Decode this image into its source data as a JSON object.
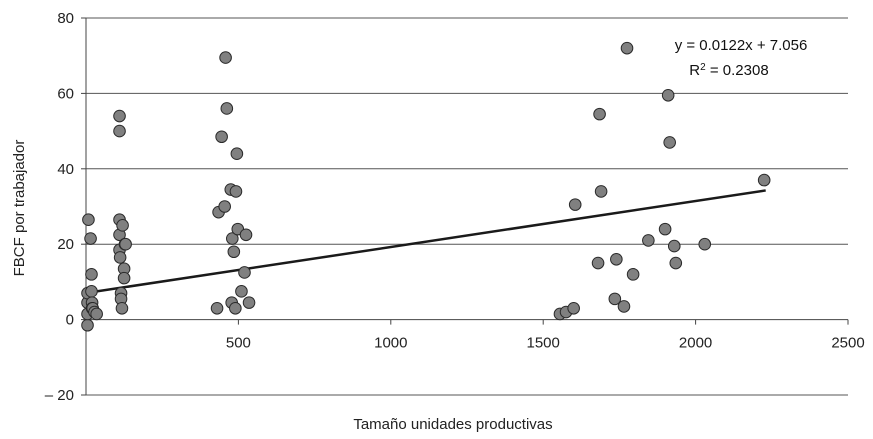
{
  "chart_data": {
    "type": "scatter",
    "xlabel": "Tamaño unidades productivas",
    "ylabel": "FBCF por trabajador",
    "xlim": [
      0,
      2500
    ],
    "ylim": [
      -20,
      80
    ],
    "xticks": [
      500,
      1000,
      1500,
      2000,
      2500
    ],
    "xtick_labels": [
      "500",
      "1000",
      "1500",
      "2000",
      "2500"
    ],
    "yticks": [
      -20,
      0,
      20,
      40,
      60,
      80
    ],
    "ytick_labels": [
      "– 20",
      "0",
      "20",
      "40",
      "60",
      "80"
    ],
    "grid": "horizontal",
    "marker_color": "#808080",
    "line_color": "#1a1a1a",
    "equation": "y = 0.0122x + 7.056",
    "r2_prefix": "R",
    "r2_sup": "2",
    "r2_value": " = 0.2308",
    "trendline": {
      "slope": 0.0122,
      "intercept": 7.056,
      "x_range": [
        0,
        2230
      ]
    },
    "x": [
      5,
      5,
      5,
      5,
      8,
      15,
      18,
      18,
      20,
      20,
      22,
      28,
      35,
      110,
      110,
      110,
      110,
      110,
      112,
      115,
      115,
      118,
      120,
      125,
      125,
      128,
      130,
      430,
      435,
      445,
      455,
      458,
      462,
      475,
      478,
      480,
      485,
      490,
      492,
      495,
      498,
      510,
      520,
      525,
      535,
      1555,
      1575,
      1600,
      1605,
      1680,
      1685,
      1690,
      1735,
      1740,
      1765,
      1775,
      1795,
      1845,
      1900,
      1910,
      1915,
      1930,
      1935,
      2030,
      2225
    ],
    "y": [
      -1.5,
      1.5,
      4.5,
      7,
      26.5,
      21.5,
      12,
      7.5,
      4.5,
      3,
      3,
      2,
      1.5,
      54,
      50,
      26.5,
      22.5,
      18.5,
      16.5,
      7,
      5.5,
      3,
      25,
      13.5,
      11,
      20,
      20,
      3,
      28.5,
      48.5,
      30,
      69.5,
      56,
      34.5,
      4.5,
      21.5,
      18,
      3,
      34,
      44,
      24,
      7.5,
      12.5,
      22.5,
      4.5,
      1.5,
      2,
      3,
      30.5,
      15,
      54.5,
      34,
      5.5,
      16,
      3.5,
      72,
      12,
      21,
      24,
      59.5,
      47,
      19.5,
      15,
      20,
      37
    ]
  }
}
